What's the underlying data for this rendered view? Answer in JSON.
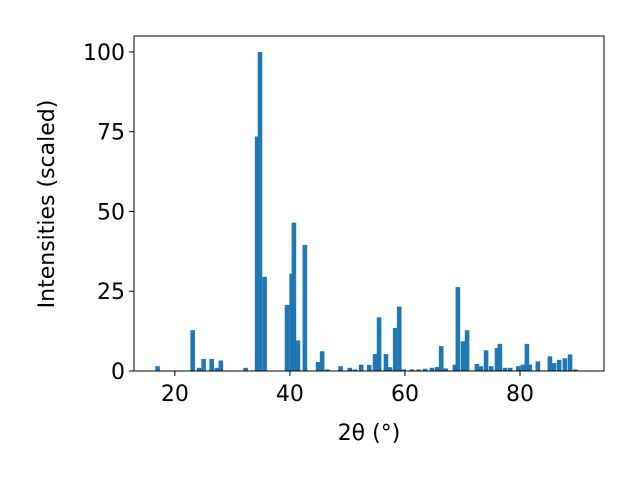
{
  "chart_data": {
    "type": "bar",
    "x_label": "2θ (°)",
    "y_label": "Intensities (scaled)",
    "x": [
      17.0,
      23.1,
      24.2,
      25.0,
      26.4,
      27.3,
      28.0,
      32.3,
      34.3,
      34.8,
      35.6,
      39.5,
      40.3,
      40.7,
      41.4,
      42.6,
      44.9,
      45.6,
      46.5,
      48.8,
      50.4,
      51.3,
      52.4,
      53.8,
      54.8,
      55.5,
      56.7,
      57.4,
      58.3,
      59.0,
      59.8,
      61.2,
      62.4,
      63.5,
      64.7,
      65.6,
      66.3,
      67.1,
      68.7,
      69.2,
      70.1,
      70.8,
      72.5,
      73.2,
      74.1,
      75.0,
      76.0,
      76.5,
      77.4,
      78.3,
      79.7,
      80.5,
      81.2,
      81.7,
      83.1,
      85.2,
      85.9,
      86.8,
      87.8,
      88.7,
      89.6
    ],
    "values": [
      1.5,
      12.8,
      1.0,
      3.8,
      3.8,
      1.0,
      3.3,
      1.0,
      73.5,
      100,
      29.5,
      20.7,
      30.5,
      46.5,
      9.6,
      39.5,
      2.8,
      6.2,
      0.5,
      1.5,
      1.0,
      0.5,
      2.0,
      1.9,
      5.3,
      16.8,
      5.3,
      1.2,
      13.5,
      20.2,
      0.5,
      0.5,
      0.5,
      0.7,
      1.0,
      1.3,
      7.8,
      0.8,
      2.0,
      26.3,
      9.3,
      12.8,
      2.2,
      1.5,
      6.5,
      1.5,
      7.2,
      8.5,
      1.0,
      1.0,
      1.5,
      2.0,
      8.5,
      2.0,
      3.0,
      4.6,
      2.5,
      3.5,
      4.0,
      5.2,
      0.5
    ],
    "color": "#1f77b4",
    "xlim": [
      12.9,
      94.6
    ],
    "xticks": [
      20,
      40,
      60,
      80
    ],
    "ylim": [
      0,
      105
    ],
    "yticks": [
      0,
      25,
      50,
      75,
      100
    ]
  }
}
